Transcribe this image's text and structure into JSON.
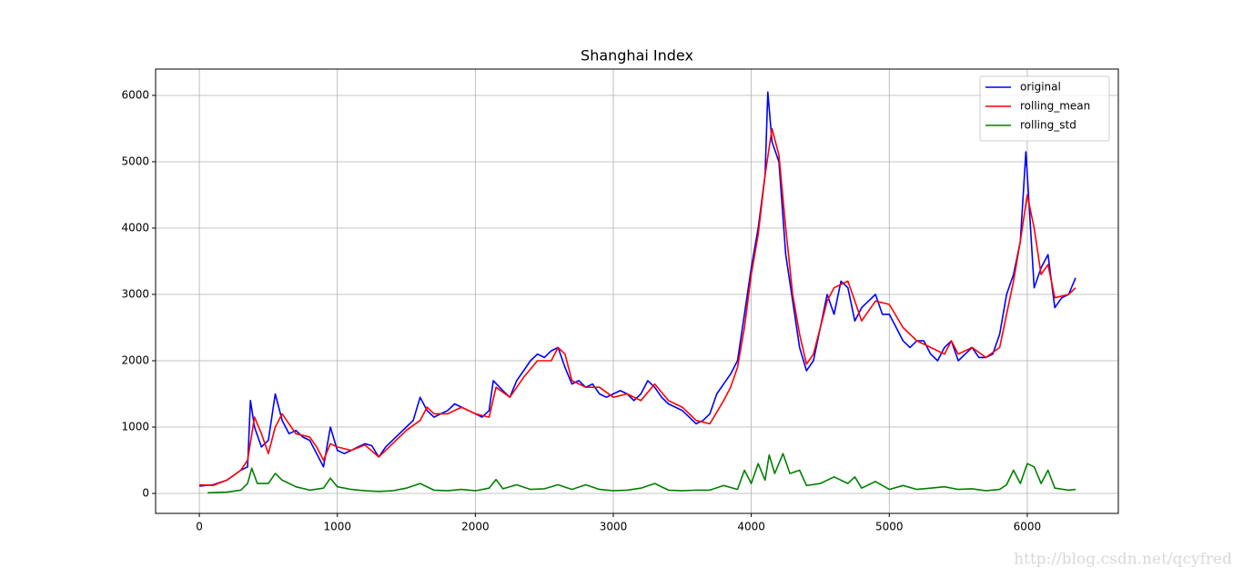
{
  "chart_data": {
    "type": "line",
    "title": "Shanghai Index",
    "watermark": "http://blog.csdn.net/qcyfred",
    "xlim": [
      -317,
      6660
    ],
    "ylim": [
      -301,
      6397
    ],
    "xticks": [
      0,
      1000,
      2000,
      3000,
      4000,
      5000,
      6000
    ],
    "yticks": [
      0,
      1000,
      2000,
      3000,
      4000,
      5000,
      6000
    ],
    "grid": true,
    "legend": "upper right",
    "series": [
      {
        "name": "original",
        "color": "#0000ff",
        "x": [
          0,
          100,
          200,
          300,
          350,
          370,
          400,
          450,
          500,
          550,
          600,
          650,
          700,
          750,
          800,
          850,
          900,
          950,
          1000,
          1050,
          1100,
          1150,
          1200,
          1250,
          1300,
          1350,
          1400,
          1450,
          1500,
          1550,
          1600,
          1650,
          1700,
          1750,
          1800,
          1850,
          1900,
          1950,
          2000,
          2050,
          2100,
          2130,
          2200,
          2250,
          2300,
          2350,
          2400,
          2450,
          2500,
          2550,
          2600,
          2650,
          2700,
          2750,
          2800,
          2850,
          2900,
          2950,
          3000,
          3050,
          3100,
          3150,
          3200,
          3250,
          3300,
          3350,
          3400,
          3450,
          3500,
          3550,
          3600,
          3650,
          3700,
          3750,
          3800,
          3850,
          3900,
          3950,
          4000,
          4050,
          4100,
          4120,
          4150,
          4200,
          4250,
          4300,
          4350,
          4400,
          4450,
          4500,
          4550,
          4600,
          4650,
          4700,
          4750,
          4800,
          4850,
          4900,
          4950,
          5000,
          5050,
          5100,
          5150,
          5200,
          5250,
          5300,
          5350,
          5400,
          5450,
          5500,
          5550,
          5600,
          5650,
          5700,
          5750,
          5800,
          5850,
          5900,
          5950,
          5990,
          6050,
          6100,
          6150,
          6200,
          6250,
          6300,
          6350
        ],
        "values": [
          110,
          130,
          200,
          350,
          400,
          1400,
          1000,
          700,
          800,
          1500,
          1100,
          900,
          950,
          850,
          800,
          600,
          400,
          1000,
          650,
          600,
          650,
          700,
          750,
          720,
          550,
          700,
          800,
          900,
          1000,
          1100,
          1450,
          1250,
          1150,
          1200,
          1250,
          1350,
          1300,
          1250,
          1200,
          1150,
          1250,
          1700,
          1550,
          1450,
          1700,
          1850,
          2000,
          2100,
          2050,
          2150,
          2200,
          1900,
          1650,
          1700,
          1600,
          1650,
          1500,
          1450,
          1500,
          1550,
          1500,
          1400,
          1500,
          1700,
          1600,
          1450,
          1350,
          1300,
          1250,
          1150,
          1050,
          1100,
          1200,
          1500,
          1650,
          1800,
          2000,
          2700,
          3400,
          4000,
          4800,
          6050,
          5300,
          5000,
          3600,
          2900,
          2200,
          1850,
          2000,
          2500,
          3000,
          2700,
          3200,
          3100,
          2600,
          2800,
          2900,
          3000,
          2700,
          2700,
          2500,
          2300,
          2200,
          2300,
          2300,
          2100,
          2000,
          2200,
          2300,
          2000,
          2100,
          2200,
          2050,
          2050,
          2100,
          2400,
          3000,
          3300,
          3800,
          5150,
          3100,
          3400,
          3600,
          2800,
          2950,
          3000,
          3250
        ]
      },
      {
        "name": "rolling_mean",
        "color": "#ff0000",
        "x": [
          0,
          100,
          200,
          300,
          350,
          400,
          450,
          500,
          550,
          600,
          650,
          700,
          800,
          850,
          900,
          950,
          1000,
          1100,
          1200,
          1300,
          1400,
          1500,
          1600,
          1650,
          1700,
          1800,
          1900,
          2000,
          2100,
          2150,
          2250,
          2350,
          2450,
          2550,
          2600,
          2650,
          2700,
          2800,
          2900,
          3000,
          3100,
          3200,
          3300,
          3400,
          3500,
          3600,
          3700,
          3800,
          3850,
          3900,
          3950,
          4000,
          4050,
          4100,
          4150,
          4200,
          4250,
          4300,
          4350,
          4400,
          4450,
          4500,
          4550,
          4600,
          4700,
          4750,
          4800,
          4900,
          5000,
          5100,
          5200,
          5300,
          5400,
          5450,
          5500,
          5600,
          5700,
          5800,
          5850,
          5900,
          5950,
          6000,
          6050,
          6100,
          6150,
          6200,
          6300,
          6350
        ],
        "values": [
          130,
          120,
          200,
          350,
          500,
          1150,
          900,
          600,
          1000,
          1200,
          1050,
          900,
          850,
          700,
          500,
          750,
          700,
          650,
          730,
          550,
          750,
          950,
          1100,
          1300,
          1200,
          1200,
          1300,
          1200,
          1150,
          1600,
          1450,
          1750,
          2000,
          2000,
          2200,
          2100,
          1700,
          1600,
          1600,
          1450,
          1500,
          1400,
          1650,
          1400,
          1300,
          1100,
          1050,
          1400,
          1600,
          1900,
          2500,
          3300,
          3900,
          4800,
          5500,
          5100,
          4000,
          3000,
          2400,
          1950,
          2100,
          2500,
          2900,
          3100,
          3200,
          2900,
          2600,
          2900,
          2850,
          2500,
          2300,
          2200,
          2100,
          2300,
          2100,
          2200,
          2050,
          2200,
          2700,
          3200,
          3800,
          4500,
          4000,
          3300,
          3450,
          2950,
          3000,
          3100
        ]
      },
      {
        "name": "rolling_std",
        "color": "#008000",
        "x": [
          60,
          200,
          300,
          350,
          380,
          420,
          500,
          550,
          600,
          700,
          800,
          900,
          950,
          1000,
          1100,
          1200,
          1300,
          1400,
          1500,
          1600,
          1700,
          1800,
          1900,
          2000,
          2100,
          2150,
          2200,
          2300,
          2400,
          2500,
          2600,
          2700,
          2800,
          2900,
          3000,
          3100,
          3200,
          3300,
          3400,
          3500,
          3600,
          3700,
          3800,
          3900,
          3950,
          4000,
          4050,
          4100,
          4130,
          4170,
          4230,
          4280,
          4350,
          4400,
          4500,
          4600,
          4700,
          4750,
          4800,
          4900,
          5000,
          5100,
          5200,
          5300,
          5400,
          5500,
          5600,
          5700,
          5800,
          5850,
          5900,
          5950,
          6000,
          6050,
          6100,
          6150,
          6200,
          6300,
          6350
        ],
        "values": [
          10,
          20,
          50,
          150,
          380,
          150,
          150,
          300,
          200,
          100,
          50,
          80,
          230,
          100,
          60,
          40,
          30,
          40,
          80,
          150,
          50,
          40,
          60,
          40,
          80,
          210,
          70,
          130,
          60,
          70,
          130,
          60,
          130,
          60,
          40,
          50,
          80,
          150,
          50,
          40,
          50,
          50,
          120,
          60,
          350,
          150,
          450,
          200,
          580,
          300,
          600,
          300,
          350,
          120,
          150,
          250,
          150,
          250,
          80,
          180,
          60,
          120,
          60,
          80,
          100,
          60,
          70,
          40,
          60,
          130,
          350,
          150,
          450,
          400,
          150,
          350,
          80,
          50,
          60
        ]
      }
    ]
  }
}
